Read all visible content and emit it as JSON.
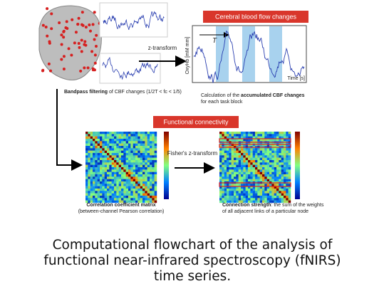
{
  "top": {
    "cbf_title": "Cerebral blood flow changes",
    "z_transform": "z-transform",
    "y_axis": "OxyHb [mM mm]",
    "period": "T",
    "x_axis": "Time [s]",
    "filter_bold": "Bandpass filtering",
    "filter_text": "of CBF changes",
    "filter_formula": "(1/2T < fc < 1/5)",
    "calc_line1_pre": "Calculation of the",
    "calc_line1_bold": "accumulated CBF changes",
    "calc_line2": "for each task block"
  },
  "bottom": {
    "fc_title": "Functional connectivity",
    "fisher": "Fisher's z-transform",
    "corr_bold": "Correlation coefficient matrix",
    "corr_sub": "(between-channel Pearson correlation)",
    "strength_bold": "Connection strength",
    "strength_line1": ": the sum of the weights",
    "strength_line2": "of all adjacent links of a particular node"
  },
  "caption": {
    "lines": [
      "Computational flowchart of the analysis of",
      "functional near-infrared spectroscopy (fNIRS)",
      "time series."
    ]
  }
}
